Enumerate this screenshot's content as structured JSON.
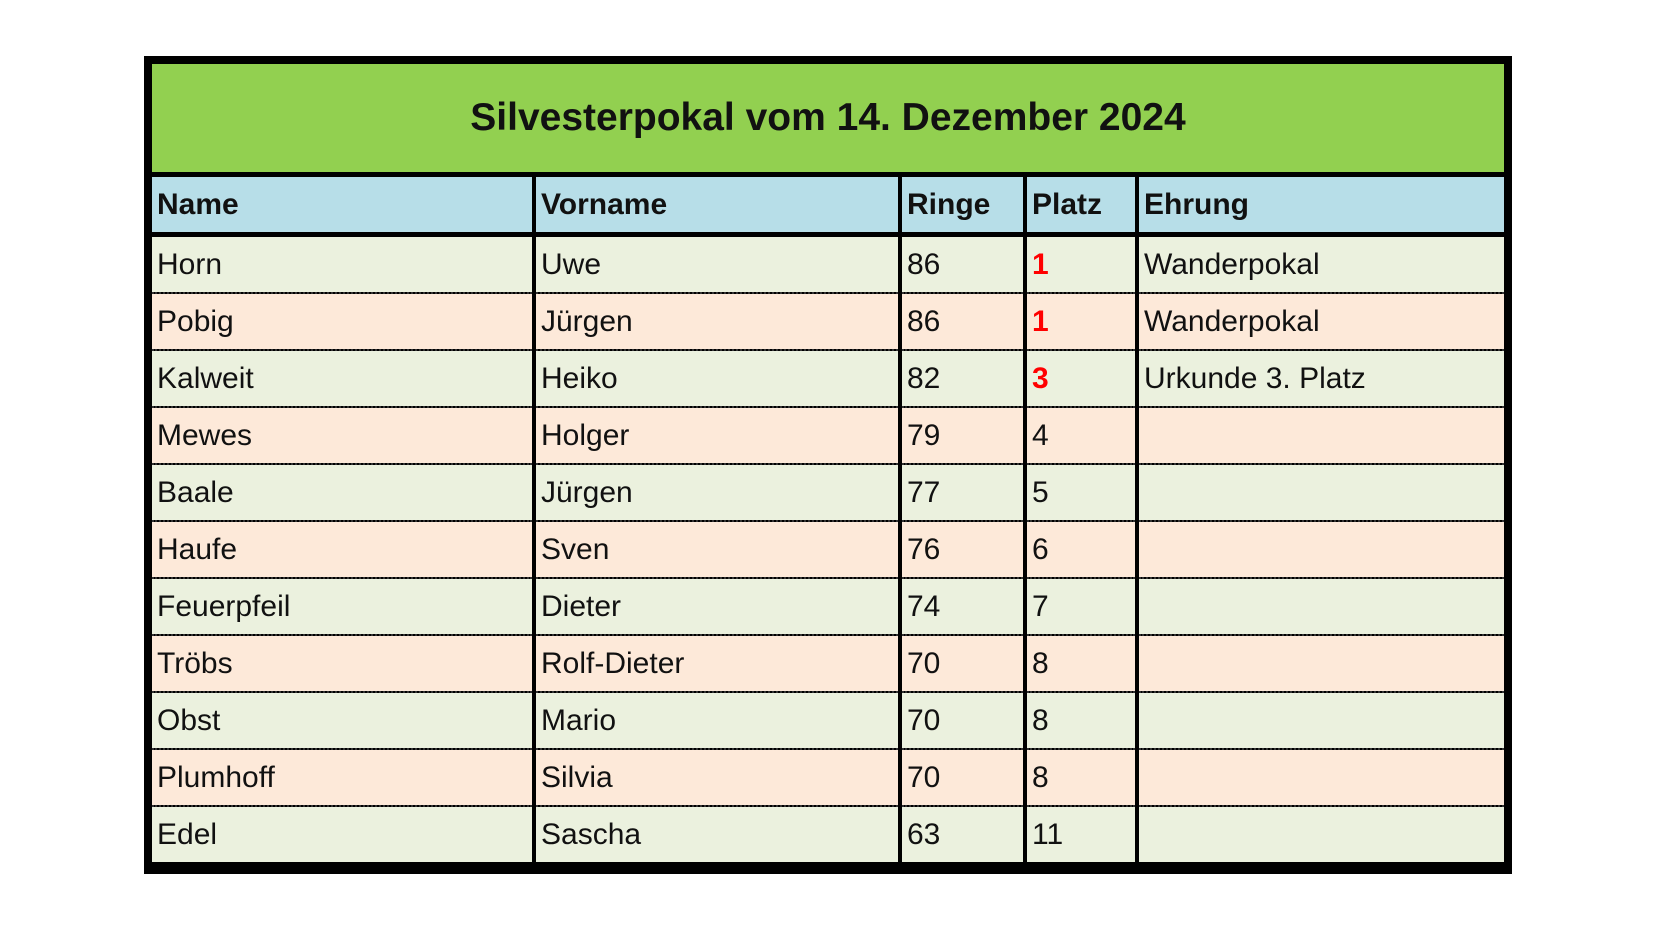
{
  "title": "Silvesterpokal vom 14. Dezember 2024",
  "columns": [
    "Name",
    "Vorname",
    "Ringe",
    "Platz",
    "Ehrung"
  ],
  "colors": {
    "title_bg": "#92d050",
    "header_bg": "#b7dee8",
    "row_odd": "#ebf1de",
    "row_even": "#fde9d9",
    "podium_place": "#ff0000"
  },
  "rows": [
    {
      "name": "Horn",
      "vorname": "Uwe",
      "ringe": "86",
      "platz": "1",
      "ehrung": "Wanderpokal",
      "highlight": true
    },
    {
      "name": "Pobig",
      "vorname": "Jürgen",
      "ringe": "86",
      "platz": "1",
      "ehrung": "Wanderpokal",
      "highlight": true
    },
    {
      "name": "Kalweit",
      "vorname": "Heiko",
      "ringe": "82",
      "platz": "3",
      "ehrung": "Urkunde 3. Platz",
      "highlight": true
    },
    {
      "name": "Mewes",
      "vorname": "Holger",
      "ringe": "79",
      "platz": "4",
      "ehrung": ""
    },
    {
      "name": "Baale",
      "vorname": "Jürgen",
      "ringe": "77",
      "platz": "5",
      "ehrung": ""
    },
    {
      "name": "Haufe",
      "vorname": "Sven",
      "ringe": "76",
      "platz": "6",
      "ehrung": ""
    },
    {
      "name": "Feuerpfeil",
      "vorname": "Dieter",
      "ringe": "74",
      "platz": "7",
      "ehrung": ""
    },
    {
      "name": "Tröbs",
      "vorname": "Rolf-Dieter",
      "ringe": "70",
      "platz": "8",
      "ehrung": ""
    },
    {
      "name": "Obst",
      "vorname": "Mario",
      "ringe": "70",
      "platz": "8",
      "ehrung": ""
    },
    {
      "name": "Plumhoff",
      "vorname": "Silvia",
      "ringe": "70",
      "platz": "8",
      "ehrung": ""
    },
    {
      "name": "Edel",
      "vorname": "Sascha",
      "ringe": "63",
      "platz": "11",
      "ehrung": ""
    }
  ]
}
